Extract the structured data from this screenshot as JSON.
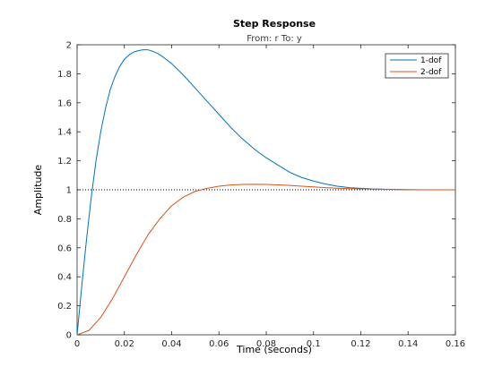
{
  "chart_data": {
    "type": "line",
    "title": "Step Response",
    "subtitle": "From: r  To: y",
    "xlabel": "Time (seconds)",
    "ylabel": "Amplitude",
    "xlim": [
      0,
      0.16
    ],
    "ylim": [
      0,
      2
    ],
    "xticks": [
      "0",
      "0.02",
      "0.04",
      "0.06",
      "0.08",
      "0.1",
      "0.12",
      "0.14",
      "0.16"
    ],
    "yticks": [
      "0",
      "0.2",
      "0.4",
      "0.6",
      "0.8",
      "1",
      "1.2",
      "1.4",
      "1.6",
      "1.8",
      "2"
    ],
    "reference_line": {
      "y": 1,
      "style": "dotted",
      "color": "#000000"
    },
    "legend": {
      "position": "top-right"
    },
    "grid": false,
    "series": [
      {
        "name": "1-dof",
        "color": "#0072BD",
        "x": [
          0,
          0.002,
          0.004,
          0.006,
          0.008,
          0.01,
          0.012,
          0.014,
          0.016,
          0.018,
          0.02,
          0.022,
          0.024,
          0.026,
          0.028,
          0.03,
          0.032,
          0.034,
          0.036,
          0.038,
          0.04,
          0.045,
          0.05,
          0.055,
          0.06,
          0.065,
          0.07,
          0.075,
          0.08,
          0.085,
          0.09,
          0.095,
          0.1,
          0.105,
          0.11,
          0.115,
          0.12,
          0.125,
          0.13,
          0.135,
          0.14,
          0.145
        ],
        "y": [
          0,
          0.34,
          0.66,
          0.95,
          1.2,
          1.4,
          1.56,
          1.69,
          1.78,
          1.85,
          1.9,
          1.93,
          1.95,
          1.96,
          1.965,
          1.965,
          1.955,
          1.94,
          1.92,
          1.895,
          1.87,
          1.79,
          1.7,
          1.61,
          1.52,
          1.43,
          1.35,
          1.28,
          1.22,
          1.17,
          1.12,
          1.085,
          1.06,
          1.04,
          1.025,
          1.015,
          1.01,
          1.006,
          1.004,
          1.002,
          1.001,
          1.0
        ]
      },
      {
        "name": "2-dof",
        "color": "#D95319",
        "x": [
          0,
          0.005,
          0.01,
          0.015,
          0.02,
          0.025,
          0.03,
          0.035,
          0.04,
          0.045,
          0.05,
          0.055,
          0.06,
          0.065,
          0.07,
          0.075,
          0.08,
          0.085,
          0.09,
          0.095,
          0.1,
          0.105,
          0.11,
          0.115,
          0.12,
          0.13,
          0.14,
          0.15,
          0.16
        ],
        "y": [
          0,
          0.03,
          0.12,
          0.25,
          0.4,
          0.55,
          0.69,
          0.8,
          0.89,
          0.95,
          0.99,
          1.01,
          1.025,
          1.033,
          1.037,
          1.038,
          1.037,
          1.034,
          1.03,
          1.025,
          1.02,
          1.015,
          1.011,
          1.008,
          1.006,
          1.003,
          1.001,
          1.0,
          1.0
        ]
      }
    ]
  }
}
